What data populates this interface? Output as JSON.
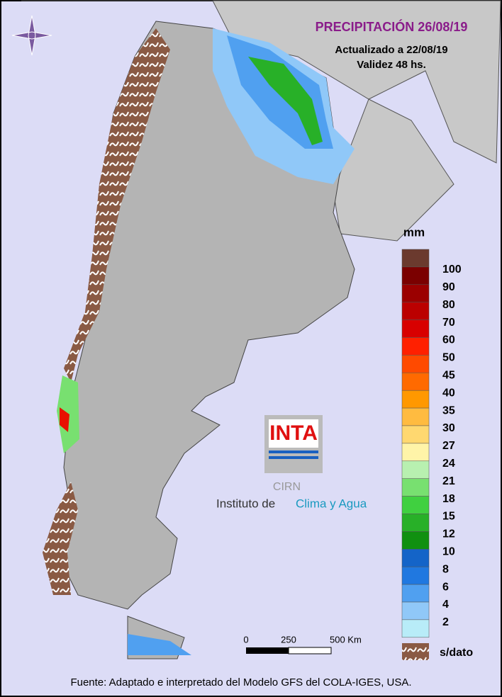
{
  "header": {
    "title": "PRECIPITACIÓN 26/08/19",
    "updated": "Actualizado a 22/08/19",
    "validity": "Validez 48 hs."
  },
  "legend": {
    "unit": "mm",
    "colors": [
      "#6b3a2e",
      "#7b0000",
      "#9b0000",
      "#bb0000",
      "#d80000",
      "#ff2000",
      "#ff4a00",
      "#ff6a00",
      "#ff9800",
      "#ffbb40",
      "#ffd870",
      "#fff4a8",
      "#b8f0b0",
      "#78e070",
      "#40d040",
      "#28b028",
      "#109010",
      "#1464c8",
      "#2078e0",
      "#50a0f0",
      "#90c8f8",
      "#b8ecf8"
    ],
    "labels": [
      "100",
      "90",
      "80",
      "70",
      "60",
      "50",
      "45",
      "40",
      "35",
      "30",
      "27",
      "24",
      "21",
      "18",
      "15",
      "12",
      "10",
      "8",
      "6",
      "4",
      "2"
    ],
    "no_data": "s/dato"
  },
  "scale": {
    "labels": [
      "0",
      "250",
      "500 Km"
    ]
  },
  "logo": {
    "brand": "INTA",
    "unit": "CIRN",
    "name_a": "Instituto de",
    "name_b": "Clima y Agua"
  },
  "footer": "Fuente: Adaptado e interpretado del Modelo GFS del COLA-IGES, USA."
}
